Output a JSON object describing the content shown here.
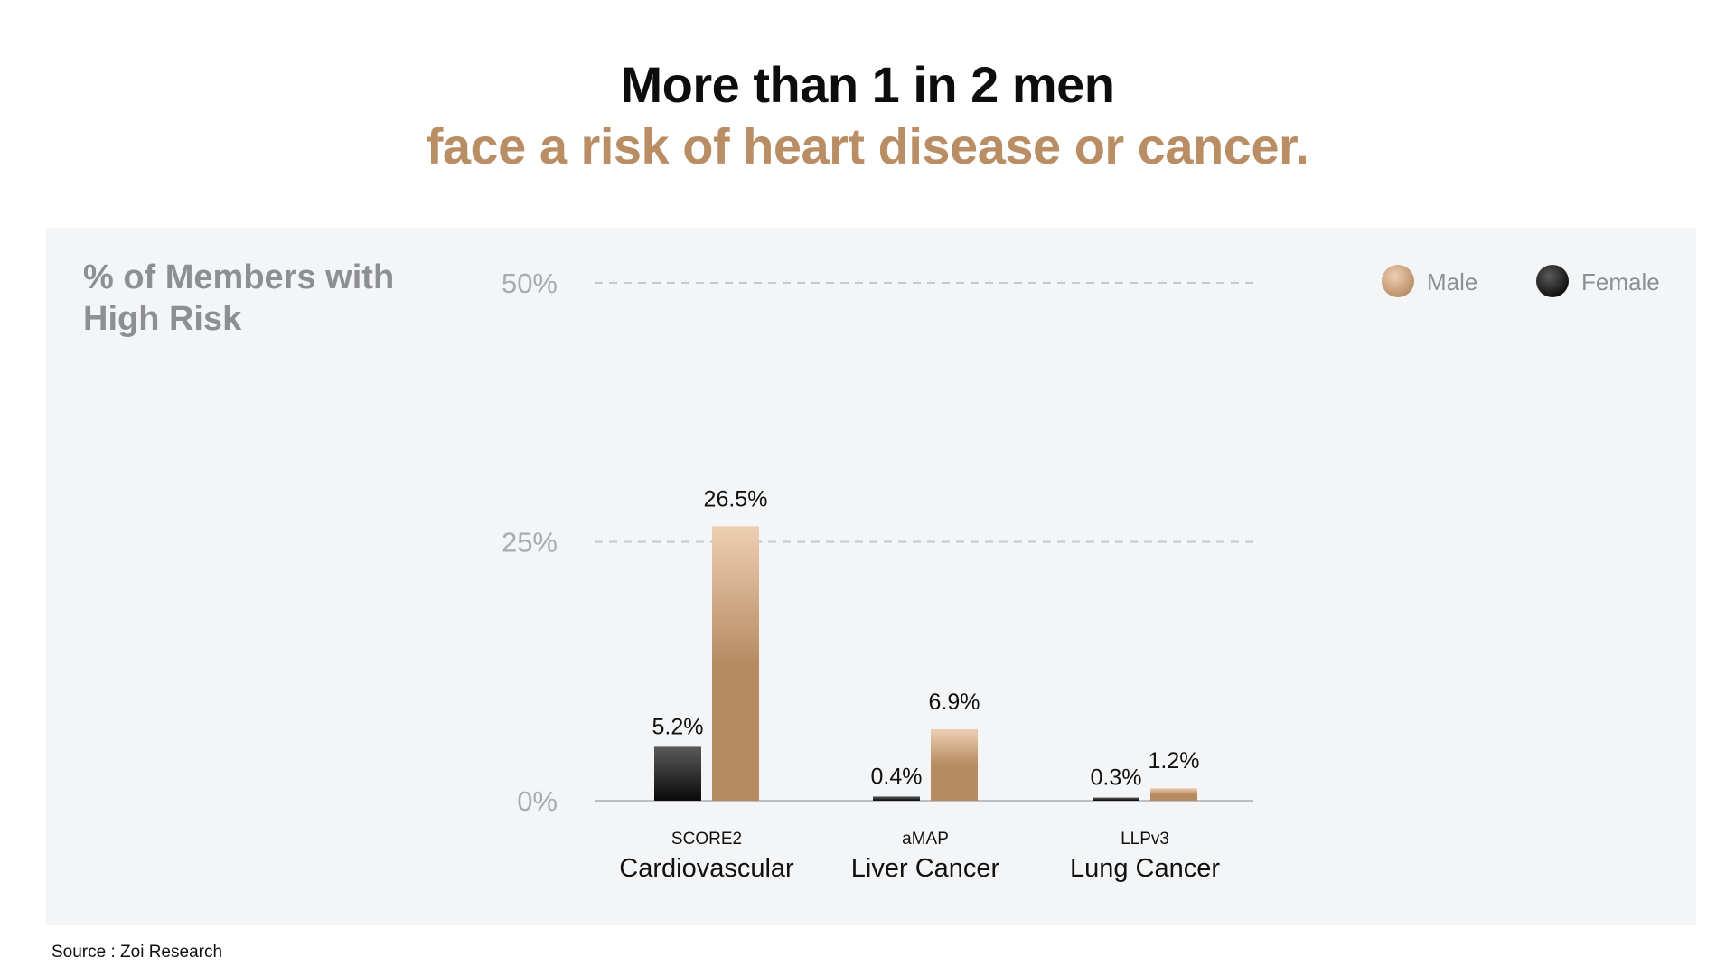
{
  "title": {
    "line1": "More than 1 in 2 men",
    "line2": "face a risk of heart disease or cancer."
  },
  "colors": {
    "accent": "#b98e65",
    "male_light": "#edcfb2",
    "male_dark": "#b78b62",
    "female_light": "#5a5a5a",
    "female_dark": "#0a0a0a",
    "grid": "#c8c9cc",
    "tick": "#a9abaf",
    "panel": "#f4f5f7"
  },
  "chart_data": {
    "type": "bar",
    "ylabel": "% of Members with High Risk",
    "ylim": [
      0,
      50
    ],
    "yticks": [
      "0%",
      "25%",
      "50%"
    ],
    "ytick_values": [
      0,
      25,
      50
    ],
    "grid": true,
    "legend_position": "top-right",
    "categories": [
      {
        "code": "SCORE2",
        "name": "Cardiovascular"
      },
      {
        "code": "aMAP",
        "name": "Liver Cancer"
      },
      {
        "code": "LLPv3",
        "name": "Lung Cancer"
      }
    ],
    "series": [
      {
        "name": "Female",
        "values": [
          5.2,
          0.4,
          0.3
        ],
        "labels": [
          "5.2%",
          "0.4%",
          "0.3%"
        ]
      },
      {
        "name": "Male",
        "values": [
          26.5,
          6.9,
          1.2
        ],
        "labels": [
          "26.5%",
          "6.9%",
          "1.2%"
        ]
      }
    ],
    "legend": [
      "Male",
      "Female"
    ]
  },
  "footer": {
    "source": "Source : Zoi Research"
  }
}
